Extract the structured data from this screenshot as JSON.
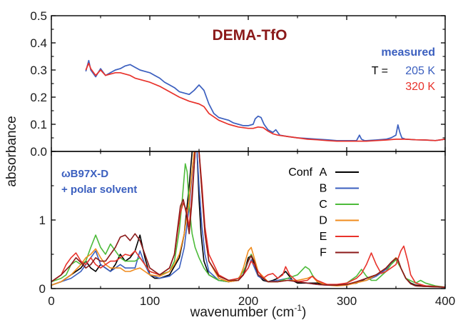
{
  "chart_data": [
    {
      "type": "line",
      "panel": "top",
      "title": "DEMA-TfO",
      "annotation": "measured",
      "legend_prefix": "T =",
      "xlim": [
        0,
        400
      ],
      "ylim": [
        0.0,
        0.5
      ],
      "y_ticks": [
        "0.0",
        "0.1",
        "0.2",
        "0.3",
        "0.4",
        "0.5"
      ],
      "series": [
        {
          "name": "205 K",
          "color": "#3b5fbf",
          "x": [
            35,
            38,
            40,
            45,
            50,
            55,
            60,
            65,
            70,
            75,
            80,
            85,
            90,
            95,
            100,
            105,
            110,
            115,
            120,
            125,
            130,
            135,
            140,
            145,
            150,
            155,
            160,
            165,
            170,
            175,
            180,
            185,
            190,
            195,
            200,
            205,
            207,
            210,
            213,
            216,
            220,
            225,
            228,
            232,
            240,
            250,
            260,
            270,
            280,
            290,
            300,
            310,
            313,
            315,
            318,
            320,
            330,
            340,
            345,
            350,
            352,
            354,
            356,
            360,
            370,
            380,
            390,
            400
          ],
          "y": [
            0.295,
            0.335,
            0.3,
            0.275,
            0.305,
            0.28,
            0.29,
            0.3,
            0.305,
            0.315,
            0.32,
            0.31,
            0.3,
            0.295,
            0.29,
            0.28,
            0.27,
            0.255,
            0.245,
            0.235,
            0.22,
            0.215,
            0.21,
            0.225,
            0.245,
            0.225,
            0.175,
            0.14,
            0.125,
            0.12,
            0.115,
            0.105,
            0.1,
            0.095,
            0.095,
            0.1,
            0.12,
            0.13,
            0.125,
            0.1,
            0.08,
            0.07,
            0.08,
            0.06,
            0.055,
            0.05,
            0.048,
            0.045,
            0.043,
            0.04,
            0.04,
            0.04,
            0.06,
            0.045,
            0.04,
            0.04,
            0.042,
            0.045,
            0.05,
            0.06,
            0.098,
            0.07,
            0.05,
            0.045,
            0.043,
            0.042,
            0.04,
            0.045
          ]
        },
        {
          "name": "320 K",
          "color": "#e8322b",
          "x": [
            35,
            38,
            40,
            45,
            50,
            55,
            60,
            65,
            70,
            75,
            80,
            85,
            90,
            95,
            100,
            110,
            120,
            130,
            140,
            150,
            155,
            160,
            170,
            180,
            190,
            200,
            205,
            210,
            215,
            220,
            225,
            230,
            240,
            250,
            260,
            270,
            280,
            290,
            300,
            310,
            320,
            330,
            340,
            350,
            360,
            370,
            380,
            390,
            400
          ],
          "y": [
            0.3,
            0.325,
            0.305,
            0.28,
            0.3,
            0.28,
            0.285,
            0.29,
            0.29,
            0.285,
            0.28,
            0.27,
            0.265,
            0.26,
            0.255,
            0.24,
            0.22,
            0.2,
            0.185,
            0.175,
            0.165,
            0.14,
            0.115,
            0.1,
            0.09,
            0.085,
            0.085,
            0.09,
            0.088,
            0.075,
            0.065,
            0.06,
            0.055,
            0.05,
            0.045,
            0.043,
            0.04,
            0.038,
            0.038,
            0.038,
            0.038,
            0.04,
            0.042,
            0.045,
            0.045,
            0.043,
            0.042,
            0.04,
            0.045
          ]
        }
      ]
    },
    {
      "type": "line",
      "panel": "bottom",
      "annotation_lines": [
        "ωB97X-D",
        "+ polar solvent"
      ],
      "legend_title": "Conf",
      "xlabel": "wavenumber (cm",
      "xlabel_sup": "-1",
      "xlabel_close": ")",
      "ylabel": "absorbance",
      "xlim": [
        0,
        400
      ],
      "ylim": [
        0,
        2
      ],
      "x_ticks": [
        "0",
        "100",
        "200",
        "300",
        "400"
      ],
      "y_ticks": [
        "0",
        "1"
      ],
      "series": [
        {
          "name": "A",
          "color": "#000000",
          "x": [
            0,
            10,
            20,
            30,
            35,
            40,
            45,
            50,
            55,
            60,
            65,
            70,
            75,
            80,
            85,
            90,
            95,
            100,
            105,
            110,
            120,
            130,
            135,
            140,
            143,
            146,
            148,
            150,
            152,
            155,
            160,
            170,
            180,
            190,
            195,
            200,
            203,
            205,
            210,
            215,
            220,
            225,
            230,
            238,
            245,
            250,
            260,
            270,
            280,
            290,
            300,
            310,
            320,
            330,
            340,
            345,
            350,
            352,
            355,
            360,
            365,
            370,
            380,
            390,
            400
          ],
          "y": [
            0.05,
            0.1,
            0.2,
            0.3,
            0.4,
            0.3,
            0.25,
            0.35,
            0.3,
            0.25,
            0.35,
            0.5,
            0.4,
            0.45,
            0.55,
            0.78,
            0.45,
            0.2,
            0.15,
            0.15,
            0.2,
            0.45,
            0.8,
            1.5,
            2.0,
            2.0,
            2.0,
            1.3,
            0.8,
            0.4,
            0.2,
            0.12,
            0.1,
            0.12,
            0.2,
            0.45,
            0.48,
            0.4,
            0.2,
            0.12,
            0.1,
            0.12,
            0.15,
            0.25,
            0.12,
            0.08,
            0.08,
            0.08,
            0.06,
            0.05,
            0.06,
            0.08,
            0.15,
            0.2,
            0.3,
            0.38,
            0.45,
            0.42,
            0.3,
            0.15,
            0.08,
            0.05,
            0.04,
            0.03,
            0.02
          ]
        },
        {
          "name": "B",
          "color": "#3b5fbf",
          "x": [
            0,
            10,
            20,
            30,
            35,
            40,
            45,
            50,
            55,
            60,
            65,
            70,
            75,
            80,
            85,
            90,
            95,
            100,
            110,
            120,
            130,
            135,
            140,
            145,
            148,
            150,
            153,
            156,
            160,
            170,
            180,
            190,
            200,
            203,
            205,
            210,
            220,
            230,
            240,
            250,
            260,
            270,
            280,
            290,
            300,
            320,
            330,
            340,
            345,
            350,
            352,
            355,
            360,
            365,
            370,
            380,
            400
          ],
          "y": [
            0.05,
            0.1,
            0.15,
            0.25,
            0.35,
            0.45,
            0.55,
            0.35,
            0.3,
            0.25,
            0.3,
            0.35,
            0.3,
            0.3,
            0.3,
            0.55,
            0.35,
            0.2,
            0.15,
            0.18,
            0.3,
            0.6,
            1.2,
            2.0,
            2.0,
            1.5,
            0.9,
            0.5,
            0.25,
            0.12,
            0.1,
            0.12,
            0.3,
            0.42,
            0.35,
            0.18,
            0.1,
            0.12,
            0.15,
            0.1,
            0.08,
            0.06,
            0.05,
            0.05,
            0.06,
            0.12,
            0.18,
            0.28,
            0.36,
            0.45,
            0.42,
            0.3,
            0.15,
            0.07,
            0.04,
            0.03,
            0.02
          ]
        },
        {
          "name": "C",
          "color": "#4dbb3a",
          "x": [
            0,
            10,
            15,
            20,
            25,
            30,
            35,
            40,
            45,
            50,
            55,
            60,
            65,
            70,
            75,
            80,
            85,
            90,
            95,
            100,
            110,
            120,
            125,
            130,
            133,
            136,
            138,
            140,
            143,
            146,
            150,
            155,
            160,
            170,
            180,
            190,
            195,
            200,
            203,
            206,
            210,
            220,
            230,
            240,
            250,
            258,
            262,
            265,
            270,
            280,
            290,
            300,
            310,
            315,
            320,
            325,
            330,
            340,
            345,
            350,
            355,
            360,
            370,
            375,
            380,
            390,
            400
          ],
          "y": [
            0.1,
            0.15,
            0.2,
            0.35,
            0.4,
            0.35,
            0.4,
            0.6,
            0.78,
            0.6,
            0.5,
            0.65,
            0.55,
            0.45,
            0.4,
            0.4,
            0.4,
            0.45,
            0.35,
            0.25,
            0.2,
            0.25,
            0.4,
            0.85,
            1.3,
            1.82,
            1.7,
            1.2,
            0.8,
            0.6,
            0.45,
            0.3,
            0.2,
            0.12,
            0.1,
            0.15,
            0.25,
            0.4,
            0.5,
            0.4,
            0.2,
            0.1,
            0.1,
            0.15,
            0.2,
            0.32,
            0.28,
            0.2,
            0.1,
            0.06,
            0.05,
            0.08,
            0.18,
            0.28,
            0.18,
            0.12,
            0.12,
            0.25,
            0.35,
            0.42,
            0.3,
            0.15,
            0.08,
            0.12,
            0.08,
            0.04,
            0.02
          ]
        },
        {
          "name": "D",
          "color": "#f08c1e",
          "x": [
            0,
            10,
            20,
            30,
            35,
            40,
            45,
            50,
            55,
            60,
            65,
            70,
            75,
            80,
            85,
            90,
            95,
            100,
            110,
            120,
            125,
            130,
            135,
            140,
            145,
            148,
            150,
            153,
            156,
            160,
            170,
            180,
            190,
            195,
            200,
            203,
            205,
            210,
            220,
            230,
            240,
            250,
            260,
            265,
            270,
            280,
            290,
            300,
            320,
            330,
            340,
            345,
            350,
            352,
            355,
            360,
            365,
            370,
            380,
            400
          ],
          "y": [
            0.05,
            0.1,
            0.2,
            0.35,
            0.45,
            0.5,
            0.58,
            0.45,
            0.35,
            0.3,
            0.3,
            0.3,
            0.25,
            0.25,
            0.28,
            0.3,
            0.25,
            0.2,
            0.18,
            0.25,
            0.35,
            0.5,
            0.8,
            1.3,
            2.0,
            2.0,
            2.0,
            1.4,
            0.8,
            0.4,
            0.15,
            0.1,
            0.12,
            0.3,
            0.55,
            0.6,
            0.5,
            0.25,
            0.1,
            0.1,
            0.12,
            0.12,
            0.15,
            0.18,
            0.1,
            0.05,
            0.04,
            0.05,
            0.12,
            0.2,
            0.3,
            0.38,
            0.45,
            0.42,
            0.3,
            0.15,
            0.07,
            0.04,
            0.03,
            0.02
          ]
        },
        {
          "name": "E",
          "color": "#e8322b",
          "x": [
            0,
            10,
            15,
            20,
            25,
            30,
            35,
            40,
            45,
            50,
            55,
            60,
            65,
            70,
            75,
            80,
            85,
            90,
            95,
            100,
            110,
            120,
            125,
            128,
            131,
            134,
            137,
            140,
            143,
            146,
            148,
            150,
            153,
            156,
            160,
            170,
            180,
            190,
            195,
            200,
            203,
            206,
            210,
            215,
            220,
            225,
            230,
            235,
            238,
            242,
            250,
            260,
            265,
            270,
            280,
            290,
            300,
            310,
            315,
            320,
            325,
            330,
            335,
            340,
            345,
            350,
            355,
            358,
            362,
            365,
            370,
            380,
            390,
            400
          ],
          "y": [
            0.1,
            0.2,
            0.35,
            0.45,
            0.52,
            0.4,
            0.35,
            0.45,
            0.35,
            0.3,
            0.35,
            0.4,
            0.4,
            0.45,
            0.5,
            0.48,
            0.55,
            0.45,
            0.35,
            0.25,
            0.2,
            0.3,
            0.5,
            0.8,
            1.1,
            1.25,
            1.15,
            0.9,
            1.4,
            2.0,
            2.0,
            2.0,
            1.5,
            0.9,
            0.5,
            0.2,
            0.12,
            0.15,
            0.2,
            0.3,
            0.4,
            0.35,
            0.25,
            0.15,
            0.2,
            0.22,
            0.15,
            0.2,
            0.32,
            0.2,
            0.1,
            0.12,
            0.18,
            0.12,
            0.06,
            0.06,
            0.08,
            0.15,
            0.22,
            0.35,
            0.52,
            0.35,
            0.22,
            0.25,
            0.3,
            0.35,
            0.55,
            0.62,
            0.4,
            0.2,
            0.08,
            0.04,
            0.03,
            0.02
          ]
        },
        {
          "name": "F",
          "color": "#8b1a1a",
          "x": [
            0,
            10,
            20,
            25,
            30,
            35,
            40,
            45,
            50,
            55,
            60,
            65,
            70,
            75,
            80,
            85,
            90,
            95,
            100,
            110,
            120,
            125,
            128,
            131,
            134,
            137,
            140,
            143,
            146,
            148,
            150,
            153,
            156,
            160,
            170,
            180,
            190,
            195,
            200,
            203,
            206,
            210,
            220,
            230,
            240,
            250,
            260,
            270,
            280,
            290,
            300,
            310,
            320,
            330,
            340,
            345,
            350,
            352,
            355,
            360,
            365,
            370,
            380,
            400
          ],
          "y": [
            0.1,
            0.2,
            0.35,
            0.45,
            0.38,
            0.3,
            0.35,
            0.45,
            0.4,
            0.4,
            0.5,
            0.6,
            0.75,
            0.78,
            0.7,
            0.8,
            0.7,
            0.5,
            0.3,
            0.2,
            0.3,
            0.5,
            0.85,
            1.2,
            1.3,
            1.1,
            0.8,
            1.3,
            2.0,
            2.0,
            2.0,
            1.4,
            0.8,
            0.4,
            0.18,
            0.12,
            0.12,
            0.2,
            0.4,
            0.48,
            0.4,
            0.2,
            0.1,
            0.1,
            0.12,
            0.1,
            0.08,
            0.06,
            0.05,
            0.05,
            0.06,
            0.1,
            0.15,
            0.2,
            0.3,
            0.38,
            0.44,
            0.42,
            0.3,
            0.15,
            0.07,
            0.04,
            0.03,
            0.02
          ]
        }
      ]
    }
  ]
}
